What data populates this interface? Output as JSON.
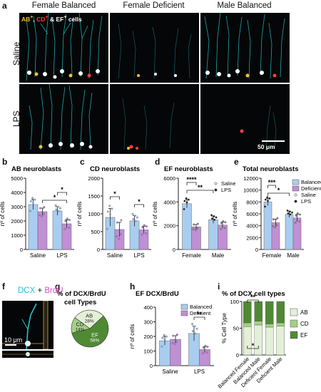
{
  "panel_a": {
    "label": "a",
    "columns": [
      "Female Balanced",
      "Female Deficient",
      "Male Balanced"
    ],
    "rows": [
      "Saline",
      "LPS"
    ],
    "legend_parts": [
      {
        "text": "AB",
        "sup": "+",
        "sep": ", ",
        "color": "#f2c230"
      },
      {
        "text": "CD",
        "sup": "+",
        "sep": " & ",
        "color": "#ff3d3d"
      },
      {
        "text": "EF",
        "sup": "+",
        "sep": " cells",
        "color": "#ffffff"
      }
    ],
    "scale_bar": "50 μm"
  },
  "panel_f": {
    "label": "f",
    "dcx": "DCX",
    "plus": " + ",
    "brdu": "BrdU",
    "scale_bar": "10 μm",
    "colors": {
      "dcx": "#1fc7d0",
      "brdu": "#d94fc6"
    }
  },
  "panel_labels": {
    "b": "b",
    "c": "c",
    "d": "d",
    "e": "e",
    "g": "g",
    "h": "h",
    "i": "i"
  },
  "colors": {
    "balanced": "#a9cdf0",
    "deficient": "#c08fd4",
    "ab": "#e3f0d6",
    "cd": "#a3cf86",
    "ef": "#4f8a33"
  },
  "chart_data": [
    {
      "id": "b",
      "type": "bar",
      "title": "AB neuroblasts",
      "categories": [
        "Saline",
        "LPS"
      ],
      "ylabel": "nº of cells",
      "ylim": [
        0,
        5000
      ],
      "yticks": [
        0,
        1000,
        2000,
        3000,
        4000,
        5000
      ],
      "series": [
        {
          "name": "Balanced",
          "values": [
            3150,
            2700
          ],
          "err": [
            350,
            300
          ]
        },
        {
          "name": "Deficient",
          "values": [
            2650,
            1800
          ],
          "err": [
            250,
            280
          ]
        }
      ],
      "sig": [
        {
          "from": [
            1,
            0
          ],
          "to": [
            1,
            1
          ],
          "text": "*"
        },
        {
          "from": [
            0,
            1
          ],
          "to": [
            1,
            1
          ],
          "text": "*"
        }
      ]
    },
    {
      "id": "c",
      "type": "bar",
      "title": "CD neuroblasts",
      "categories": [
        "Saline",
        "LPS"
      ],
      "ylabel": "nº of cells",
      "ylim": [
        0,
        2000
      ],
      "yticks": [
        0,
        500,
        1000,
        1500,
        2000
      ],
      "series": [
        {
          "name": "Balanced",
          "values": [
            900,
            800
          ],
          "err": [
            250,
            150
          ]
        },
        {
          "name": "Deficient",
          "values": [
            560,
            550
          ],
          "err": [
            200,
            100
          ]
        }
      ],
      "sig": [
        {
          "from": [
            0,
            0
          ],
          "to": [
            0,
            1
          ],
          "text": "*"
        },
        {
          "from": [
            1,
            0
          ],
          "to": [
            1,
            1
          ],
          "text": "*"
        }
      ]
    },
    {
      "id": "d",
      "type": "bar",
      "title": "EF neuroblasts",
      "categories": [
        "Female",
        "Male"
      ],
      "ylabel": "nº of cells",
      "ylim": [
        0,
        6000
      ],
      "yticks": [
        0,
        2000,
        4000,
        6000
      ],
      "series": [
        {
          "name": "Saline",
          "values": [
            3850,
            2500
          ],
          "err": [
            350,
            300
          ]
        },
        {
          "name": "LPS",
          "values": [
            1900,
            2050
          ],
          "err": [
            200,
            250
          ]
        }
      ],
      "legend": [
        {
          "label": "Saline",
          "marker": "dot"
        },
        {
          "label": "LPS",
          "marker": "dot"
        }
      ],
      "sig": [
        {
          "from": [
            0,
            0
          ],
          "to": [
            0,
            1
          ],
          "text": "****"
        },
        {
          "from": [
            0,
            0
          ],
          "to": [
            1,
            0
          ],
          "text": "**"
        }
      ]
    },
    {
      "id": "e",
      "type": "bar",
      "title": "Total neuroblasts",
      "categories": [
        "Female",
        "Male"
      ],
      "ylabel": "nº of cells",
      "ylim": [
        0,
        12000
      ],
      "yticks": [
        0,
        2000,
        4000,
        6000,
        8000,
        10000,
        12000
      ],
      "series": [
        {
          "name": "Saline",
          "values": [
            8000,
            5900
          ],
          "err": [
            600,
            500
          ]
        },
        {
          "name": "LPS",
          "values": [
            4500,
            5300
          ],
          "err": [
            600,
            600
          ]
        }
      ],
      "legend": [
        {
          "label": "Balanced",
          "marker": "box"
        },
        {
          "label": "Deficient",
          "marker": "box"
        },
        {
          "label": "Saline",
          "marker": "dot"
        },
        {
          "label": "LPS",
          "marker": "dot"
        }
      ],
      "sig": [
        {
          "from": [
            0,
            0
          ],
          "to": [
            0,
            1
          ],
          "text": "***"
        },
        {
          "from": [
            0,
            0
          ],
          "to": [
            1,
            0
          ],
          "text": "*"
        }
      ]
    },
    {
      "id": "g",
      "type": "pie",
      "title": "% of DCX/BrdU",
      "subtitle": "cell Types",
      "slices": [
        {
          "label": "EF",
          "value": 58,
          "text": "58%"
        },
        {
          "label": "AB",
          "value": 28,
          "text": "28%"
        },
        {
          "label": "CD",
          "value": 14,
          "text": "14%"
        }
      ]
    },
    {
      "id": "h",
      "type": "bar",
      "title": "EF DCX/BrdU",
      "categories": [
        "Saline",
        "LPS"
      ],
      "ylabel": "nº of cells",
      "ylim": [
        0,
        400
      ],
      "yticks": [
        0,
        100,
        200,
        300,
        400
      ],
      "series": [
        {
          "name": "Balanced",
          "values": [
            170,
            220
          ],
          "err": [
            30,
            50
          ]
        },
        {
          "name": "Deficient",
          "values": [
            180,
            110
          ],
          "err": [
            25,
            20
          ]
        }
      ],
      "legend": [
        {
          "label": "Balanced",
          "marker": "box"
        },
        {
          "label": "Deficient",
          "marker": "box"
        }
      ],
      "sig": [
        {
          "from": [
            1,
            0
          ],
          "to": [
            1,
            1
          ],
          "text": "**"
        }
      ]
    },
    {
      "id": "i",
      "type": "bar",
      "title": "% of DCX cell types",
      "categories": [
        "Balanced Female",
        "Balanced Male",
        "Deficient Female",
        "Deficient Male"
      ],
      "ylabel": "% Cell Type",
      "ylim": [
        0,
        100
      ],
      "yticks": [
        0,
        50,
        100
      ],
      "series": [
        {
          "name": "AB",
          "values": [
            53,
            56,
            52,
            54
          ]
        },
        {
          "name": "CD",
          "values": [
            7,
            7,
            6,
            6
          ]
        },
        {
          "name": "EF",
          "values": [
            40,
            37,
            42,
            40
          ]
        }
      ],
      "legend": [
        {
          "label": "AB"
        },
        {
          "label": "CD"
        },
        {
          "label": "EF"
        }
      ],
      "sig": [
        {
          "from": [
            0
          ],
          "to": [
            1
          ],
          "text": "**"
        },
        {
          "from": [
            0
          ],
          "to": [
            1
          ],
          "text": "*"
        }
      ]
    }
  ]
}
